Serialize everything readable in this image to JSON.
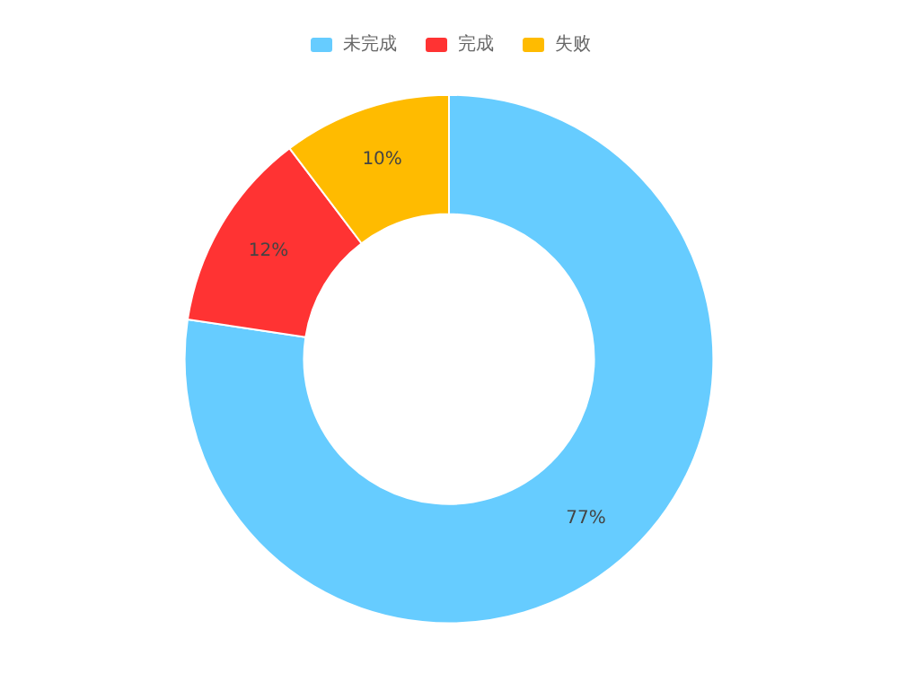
{
  "chart_data": {
    "type": "donut",
    "categories": [
      "未完成",
      "完成",
      "失败"
    ],
    "values": [
      77.4,
      12.3,
      10.3
    ],
    "colors": [
      "#66ccff",
      "#ff3333",
      "#ffbb00"
    ],
    "value_labels": [
      "77%",
      "12%",
      "10%"
    ],
    "legend": "top"
  }
}
